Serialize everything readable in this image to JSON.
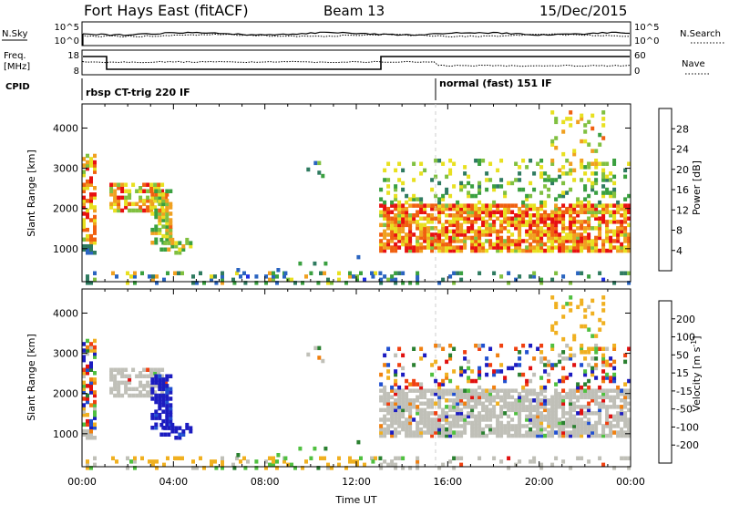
{
  "header": {
    "station": "Fort Hays East (fitACF)",
    "beam": "Beam 13",
    "date": "15/Dec/2015"
  },
  "strip_sky": {
    "left_label": "N.Sky",
    "right_label": "N.Search",
    "ticks_left": [
      "10^5",
      "10^0"
    ],
    "ticks_right": [
      "10^5",
      "10^0"
    ]
  },
  "strip_freq": {
    "left_label_line1": "Freq.",
    "left_label_line2": "[MHz]",
    "right_label": "Nave",
    "ticks_left": [
      "18",
      "8"
    ],
    "ticks_right": [
      "60",
      "0"
    ]
  },
  "cpid": {
    "label": "CPID",
    "segments": [
      {
        "name": "rbsp CT-trig 220 IF",
        "start_h": 0,
        "end_h": 15.8
      },
      {
        "name": "normal (fast) 151 IF",
        "start_h": 15.8,
        "end_h": 24
      }
    ]
  },
  "chart_data": [
    {
      "type": "heatmap",
      "quantity": "Power",
      "ylabel": "Slant Range [km]",
      "xlabel": "Time UT",
      "xlim_hours": [
        0,
        24
      ],
      "ylim": [
        180,
        4600
      ],
      "y_ticks": [
        1000,
        2000,
        3000,
        4000
      ],
      "x_tick_labels": [
        "00:00",
        "04:00",
        "08:00",
        "12:00",
        "16:00",
        "20:00",
        "00:00"
      ],
      "colorbar": {
        "label": "Power [dB]",
        "ticks": [
          "28",
          "24",
          "20",
          "16",
          "12",
          "8",
          "4"
        ]
      }
    },
    {
      "type": "heatmap",
      "quantity": "Velocity",
      "ylabel": "Slant Range [km]",
      "xlabel": "Time UT",
      "xlim_hours": [
        0,
        24
      ],
      "ylim": [
        180,
        4600
      ],
      "y_ticks": [
        1000,
        2000,
        3000,
        4000
      ],
      "x_tick_labels": [
        "00:00",
        "04:00",
        "08:00",
        "12:00",
        "16:00",
        "20:00",
        "00:00"
      ],
      "colorbar": {
        "label": "Velocity [m s",
        "label_sup": "-1",
        "label_end": "]",
        "ticks": [
          "200",
          "100",
          "50",
          "15",
          "-15",
          "-50",
          "-100",
          "-200"
        ]
      }
    }
  ],
  "colors": {
    "power_scale": [
      "#2030e0",
      "#2a64c0",
      "#2f7b60",
      "#3aa040",
      "#80c040",
      "#e8e020",
      "#f0a020",
      "#f06010",
      "#e81010"
    ],
    "velocity_scale": [
      "#1c1cc0",
      "#2050d0",
      "#2a8030",
      "#50c040",
      "#c0c0b8",
      "#f0b020",
      "#f08010",
      "#f04010",
      "#e01010"
    ]
  },
  "axis_title": "Time UT"
}
